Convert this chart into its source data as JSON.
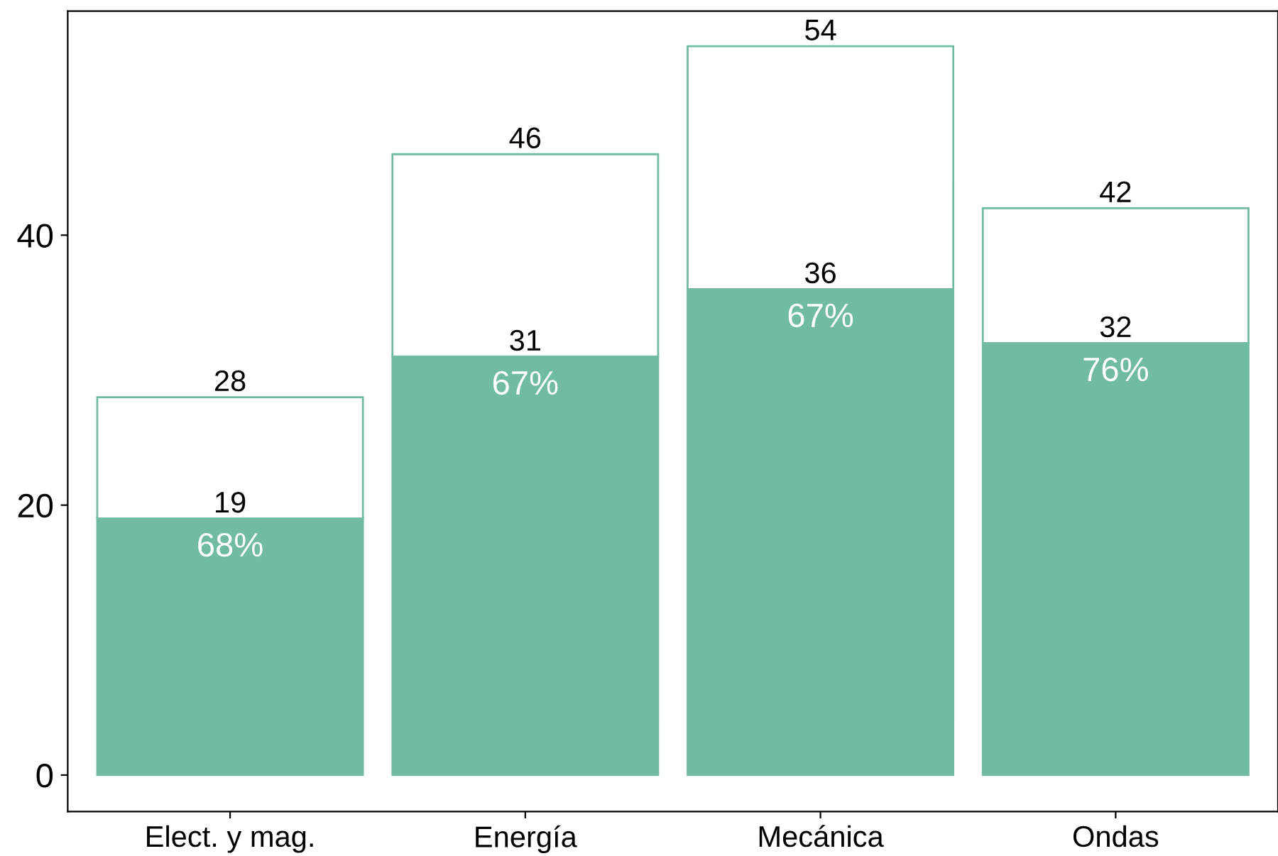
{
  "chart_data": {
    "type": "bar",
    "stacked": true,
    "categories": [
      "Elect. y mag.",
      "Energía",
      "Mecánica",
      "Ondas"
    ],
    "series": [
      {
        "color": "#72bba3",
        "values": [
          19,
          31,
          36,
          32
        ],
        "value_labels": [
          "19",
          "31",
          "36",
          "32"
        ]
      },
      {
        "color": "#ffffff",
        "values": [
          9,
          15,
          18,
          10
        ]
      }
    ],
    "totals": [
      "28",
      "46",
      "54",
      "42"
    ],
    "annotations": [
      {
        "text": "68%",
        "x": "Elect. y mag.",
        "y": 19
      },
      {
        "text": "67%",
        "x": "Energía",
        "y": 31
      },
      {
        "text": "67%",
        "x": "Mecánica",
        "y": 36
      },
      {
        "text": "76%",
        "x": "Ondas",
        "y": 32
      }
    ],
    "ylim": [
      -2.7,
      56.6
    ],
    "yticks": [
      0,
      20,
      40
    ],
    "grid": false,
    "legend": false
  }
}
